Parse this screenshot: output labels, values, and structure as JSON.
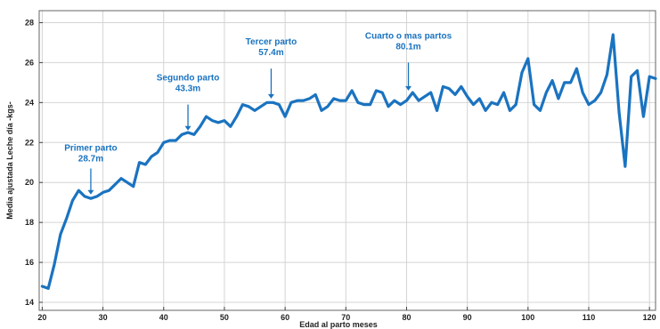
{
  "chart_data": {
    "type": "line",
    "xlabel": "Edad al parto meses",
    "ylabel": "Media ajustada Leche día -kgs-",
    "xlim": [
      19.5,
      121
    ],
    "ylim": [
      13.6,
      28.6
    ],
    "xticks": [
      20,
      30,
      40,
      50,
      60,
      70,
      80,
      90,
      100,
      110,
      120
    ],
    "yticks": [
      14,
      16,
      18,
      20,
      22,
      24,
      26,
      28
    ],
    "xtick_labels": [
      "20",
      "30",
      "40",
      "50",
      "60",
      "70",
      "80",
      "90",
      "100",
      "110",
      "120"
    ],
    "ytick_labels": [
      "14",
      "16",
      "18",
      "20",
      "22",
      "24",
      "26",
      "28"
    ],
    "grid": true,
    "colors": {
      "line": "#1a73c0",
      "annotation": "#1a73c0"
    },
    "series": [
      {
        "x": [
          20,
          21,
          22,
          23,
          24,
          25,
          26,
          27,
          28,
          29,
          30,
          31,
          32,
          33,
          34,
          35,
          36,
          37,
          38,
          39,
          40,
          41,
          42,
          43,
          44,
          45,
          46,
          47,
          48,
          49,
          50,
          51,
          52,
          53,
          54,
          55,
          56,
          57,
          58,
          59,
          60,
          61,
          62,
          63,
          64,
          65,
          66,
          67,
          68,
          69,
          70,
          71,
          72,
          73,
          74,
          75,
          76,
          77,
          78,
          79,
          80,
          81,
          82,
          83,
          84,
          85,
          86,
          87,
          88,
          89,
          90,
          91,
          92,
          93,
          94,
          95,
          96,
          97,
          98,
          99,
          100,
          101,
          102,
          103,
          104,
          105,
          106,
          107,
          108,
          109,
          110,
          111,
          112,
          113,
          114,
          115,
          116,
          117,
          118,
          119,
          120,
          121
        ],
        "y": [
          14.8,
          14.7,
          15.9,
          17.4,
          18.2,
          19.1,
          19.6,
          19.3,
          19.2,
          19.3,
          19.5,
          19.6,
          19.9,
          20.2,
          20.0,
          19.8,
          21.0,
          20.9,
          21.3,
          21.5,
          22.0,
          22.1,
          22.1,
          22.4,
          22.5,
          22.4,
          22.8,
          23.3,
          23.1,
          23.0,
          23.1,
          22.8,
          23.3,
          23.9,
          23.8,
          23.6,
          23.8,
          24.0,
          24.0,
          23.9,
          23.3,
          24.0,
          24.1,
          24.1,
          24.2,
          24.4,
          23.6,
          23.8,
          24.2,
          24.1,
          24.1,
          24.6,
          24.0,
          23.9,
          23.9,
          24.6,
          24.5,
          23.8,
          24.1,
          23.9,
          24.1,
          24.5,
          24.1,
          24.3,
          24.5,
          23.6,
          24.8,
          24.7,
          24.4,
          24.8,
          24.3,
          23.9,
          24.2,
          23.6,
          24.0,
          23.9,
          24.5,
          23.6,
          23.9,
          25.5,
          26.2,
          23.9,
          23.6,
          24.5,
          25.1,
          24.2,
          25.0,
          25.0,
          25.7,
          24.5,
          23.9,
          24.1,
          24.5,
          25.4,
          27.4,
          23.5,
          20.8,
          25.3,
          25.6,
          23.3,
          25.3,
          25.2
        ]
      }
    ],
    "annotations": [
      {
        "line1": "Primer parto",
        "line2": "28.7m",
        "x": 28,
        "y_text": 21.6,
        "y_arrow_top": 20.7,
        "y_arrow_tip": 19.4
      },
      {
        "line1": "Segundo parto",
        "line2": "43.3m",
        "x": 44,
        "y_text": 25.1,
        "y_arrow_top": 23.9,
        "y_arrow_tip": 22.6
      },
      {
        "line1": "Tercer parto",
        "line2": "57.4m",
        "x": 57.7,
        "y_text": 26.9,
        "y_arrow_top": 25.7,
        "y_arrow_tip": 24.2
      },
      {
        "line1": "Cuarto o mas  partos",
        "line2": "80.1m",
        "x": 80.3,
        "y_text": 27.2,
        "y_arrow_top": 26.0,
        "y_arrow_tip": 24.6
      }
    ]
  }
}
